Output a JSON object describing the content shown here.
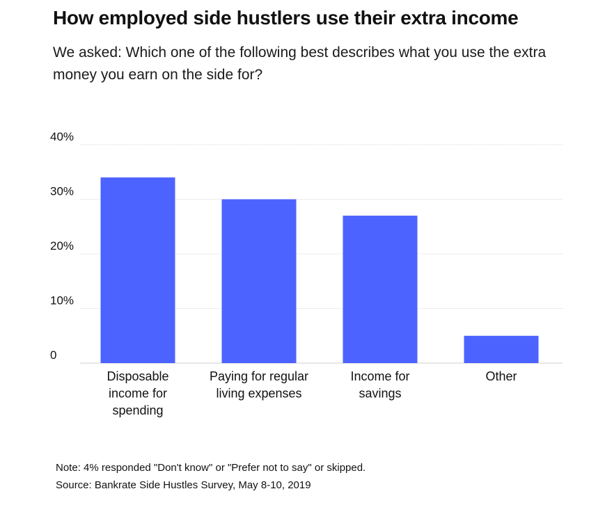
{
  "chart_data": {
    "type": "bar",
    "title": "How employed side hustlers use their extra income",
    "subtitle": "We asked: Which one of the following best describes what you use the extra money you earn on the side for?",
    "categories": [
      [
        "Disposable",
        "income for",
        "spending"
      ],
      [
        "Paying for regular",
        "living expenses"
      ],
      [
        "Income for",
        "savings"
      ],
      [
        "Other"
      ]
    ],
    "values": [
      34,
      30,
      27,
      5
    ],
    "yticks": [
      {
        "value": 0,
        "label": "0"
      },
      {
        "value": 10,
        "label": "10%"
      },
      {
        "value": 20,
        "label": "20%"
      },
      {
        "value": 30,
        "label": "30%"
      },
      {
        "value": 40,
        "label": "40%"
      }
    ],
    "ylim": [
      0,
      40
    ],
    "xlabel": "",
    "ylabel": "",
    "grid": true,
    "bar_color": "#4d63ff",
    "grid_color": "#d9d9d9",
    "note": "Note: 4% responded \"Don't know\" or \"Prefer not to say\" or skipped.",
    "source": "Source: Bankrate Side Hustles Survey, May 8-10, 2019"
  }
}
